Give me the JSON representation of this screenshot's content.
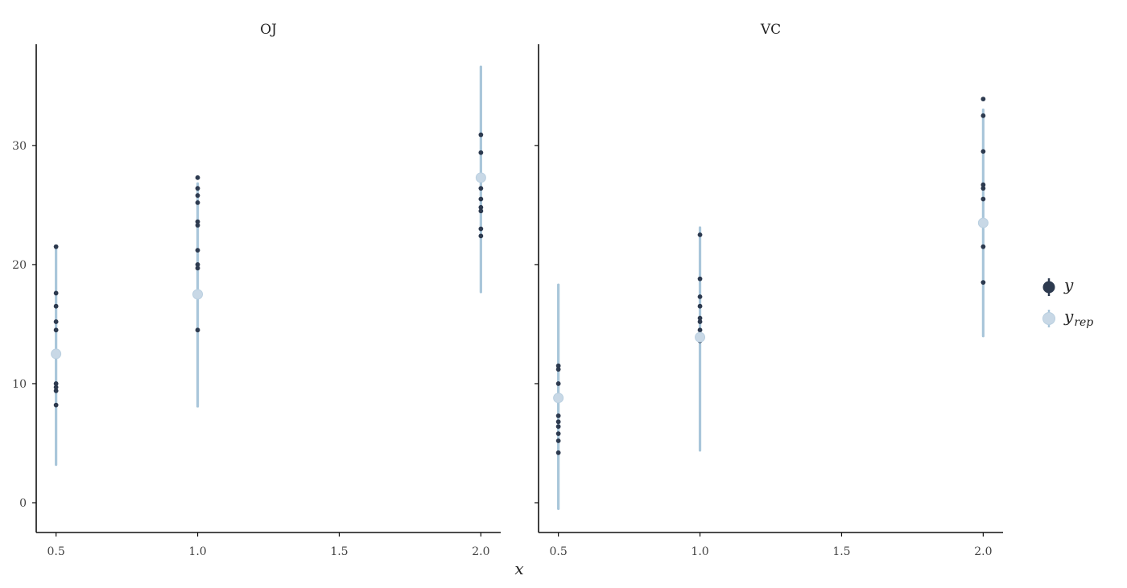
{
  "chart_data": {
    "type": "scatter",
    "xlabel": "x",
    "ylabel": "",
    "xlim": [
      0.43,
      2.07
    ],
    "ylim": [
      -2.5,
      38.5
    ],
    "x_ticks": [
      0.5,
      1.0,
      1.5,
      2.0
    ],
    "x_tick_labels": [
      "0.5",
      "1.0",
      "1.5",
      "2.0"
    ],
    "y_ticks": [
      0,
      10,
      20,
      30
    ],
    "y_tick_labels": [
      "0",
      "10",
      "20",
      "30"
    ],
    "grid": false,
    "legend_position": "right",
    "legend": [
      {
        "label": "y",
        "sub": "",
        "color": "#2d3a4f"
      },
      {
        "label": "y",
        "sub": "rep",
        "color": "#c8d8e6"
      }
    ],
    "colors": {
      "y": "#2d3a4f",
      "yrep_line": "#a9c6da",
      "yrep_point": "#c8d8e6",
      "axis": "#111111"
    },
    "panels": [
      {
        "title": "OJ",
        "y_points": [
          {
            "x": 0.5,
            "values": [
              21.5,
              17.6,
              16.5,
              15.2,
              14.5,
              10.0,
              9.7,
              9.4,
              8.2
            ]
          },
          {
            "x": 1.0,
            "values": [
              27.3,
              26.4,
              25.8,
              25.2,
              23.6,
              23.3,
              21.2,
              20.0,
              19.7,
              14.5
            ]
          },
          {
            "x": 2.0,
            "values": [
              30.9,
              29.4,
              27.3,
              26.4,
              25.5,
              24.8,
              24.5,
              23.0,
              22.4
            ]
          }
        ],
        "yrep": [
          {
            "x": 0.5,
            "mid": 12.5,
            "low": 3.2,
            "high": 21.5
          },
          {
            "x": 1.0,
            "mid": 17.5,
            "low": 8.1,
            "high": 26.8
          },
          {
            "x": 2.0,
            "mid": 27.3,
            "low": 17.7,
            "high": 36.6
          }
        ]
      },
      {
        "title": "VC",
        "y_points": [
          {
            "x": 0.5,
            "values": [
              11.5,
              11.2,
              10.0,
              7.3,
              6.8,
              6.4,
              5.8,
              5.2,
              4.2
            ]
          },
          {
            "x": 1.0,
            "values": [
              22.5,
              18.8,
              17.3,
              16.5,
              15.5,
              15.2,
              14.5,
              13.6
            ]
          },
          {
            "x": 2.0,
            "values": [
              33.9,
              32.5,
              29.5,
              26.7,
              26.4,
              25.5,
              23.6,
              23.3,
              21.5,
              18.5
            ]
          }
        ],
        "yrep": [
          {
            "x": 0.5,
            "mid": 8.8,
            "low": -0.5,
            "high": 18.3
          },
          {
            "x": 1.0,
            "mid": 13.9,
            "low": 4.4,
            "high": 23.1
          },
          {
            "x": 2.0,
            "mid": 23.5,
            "low": 14.0,
            "high": 33.0
          }
        ]
      }
    ]
  }
}
